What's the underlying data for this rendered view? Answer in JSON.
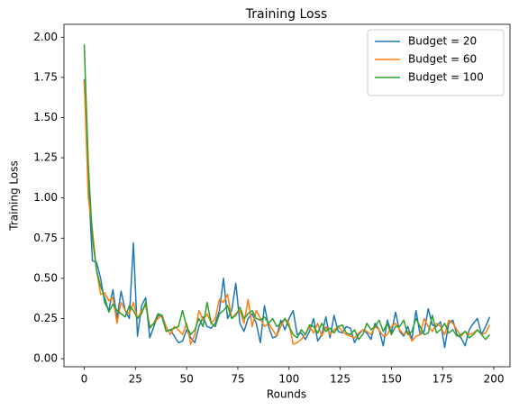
{
  "chart_data": {
    "type": "line",
    "title": "Training Loss",
    "xlabel": "Rounds",
    "ylabel": "Training Loss",
    "x": [
      0,
      2,
      4,
      6,
      8,
      10,
      12,
      14,
      16,
      18,
      20,
      22,
      24,
      26,
      28,
      30,
      32,
      34,
      36,
      38,
      40,
      42,
      44,
      46,
      48,
      50,
      52,
      54,
      56,
      58,
      60,
      62,
      64,
      66,
      68,
      70,
      72,
      74,
      76,
      78,
      80,
      82,
      84,
      86,
      88,
      90,
      92,
      94,
      96,
      98,
      100,
      102,
      104,
      106,
      108,
      110,
      112,
      114,
      116,
      118,
      120,
      122,
      124,
      126,
      128,
      130,
      132,
      134,
      136,
      138,
      140,
      142,
      144,
      146,
      148,
      150,
      152,
      154,
      156,
      158,
      160,
      162,
      164,
      166,
      168,
      170,
      172,
      174,
      176,
      178,
      180,
      182,
      184,
      186,
      188,
      190,
      192,
      194,
      196,
      198
    ],
    "series": [
      {
        "name": "Budget = 20",
        "color": "#1f77b4",
        "values": [
          1.74,
          1.1,
          0.61,
          0.6,
          0.5,
          0.35,
          0.3,
          0.43,
          0.25,
          0.42,
          0.3,
          0.25,
          0.72,
          0.14,
          0.33,
          0.38,
          0.13,
          0.2,
          0.27,
          0.26,
          0.17,
          0.18,
          0.14,
          0.1,
          0.11,
          0.18,
          0.13,
          0.1,
          0.2,
          0.26,
          0.2,
          0.19,
          0.22,
          0.3,
          0.5,
          0.25,
          0.3,
          0.47,
          0.22,
          0.17,
          0.25,
          0.28,
          0.22,
          0.1,
          0.33,
          0.2,
          0.13,
          0.14,
          0.24,
          0.18,
          0.25,
          0.3,
          0.15,
          0.16,
          0.12,
          0.17,
          0.25,
          0.11,
          0.15,
          0.26,
          0.13,
          0.27,
          0.17,
          0.16,
          0.2,
          0.19,
          0.1,
          0.15,
          0.18,
          0.16,
          0.12,
          0.22,
          0.18,
          0.08,
          0.24,
          0.16,
          0.29,
          0.17,
          0.14,
          0.2,
          0.12,
          0.3,
          0.15,
          0.17,
          0.31,
          0.21,
          0.2,
          0.23,
          0.07,
          0.22,
          0.24,
          0.15,
          0.13,
          0.08,
          0.18,
          0.22,
          0.25,
          0.15,
          0.2,
          0.26
        ]
      },
      {
        "name": "Budget = 60",
        "color": "#ff7f0e",
        "values": [
          1.73,
          1.0,
          0.8,
          0.55,
          0.4,
          0.41,
          0.36,
          0.38,
          0.22,
          0.35,
          0.3,
          0.28,
          0.35,
          0.25,
          0.3,
          0.33,
          0.2,
          0.22,
          0.25,
          0.27,
          0.2,
          0.15,
          0.2,
          0.18,
          0.15,
          0.22,
          0.09,
          0.15,
          0.3,
          0.24,
          0.28,
          0.22,
          0.25,
          0.37,
          0.35,
          0.4,
          0.25,
          0.28,
          0.3,
          0.22,
          0.37,
          0.2,
          0.3,
          0.25,
          0.2,
          0.22,
          0.18,
          0.14,
          0.2,
          0.25,
          0.22,
          0.09,
          0.1,
          0.12,
          0.15,
          0.2,
          0.16,
          0.22,
          0.14,
          0.2,
          0.15,
          0.18,
          0.2,
          0.17,
          0.15,
          0.14,
          0.13,
          0.16,
          0.18,
          0.17,
          0.15,
          0.2,
          0.18,
          0.14,
          0.15,
          0.2,
          0.22,
          0.18,
          0.15,
          0.17,
          0.11,
          0.14,
          0.15,
          0.25,
          0.2,
          0.17,
          0.22,
          0.2,
          0.15,
          0.24,
          0.22,
          0.18,
          0.14,
          0.17,
          0.15,
          0.16,
          0.18,
          0.15,
          0.16,
          0.21
        ]
      },
      {
        "name": "Budget = 100",
        "color": "#2ca02c",
        "values": [
          1.955,
          1.2,
          0.75,
          0.55,
          0.45,
          0.38,
          0.29,
          0.34,
          0.3,
          0.28,
          0.26,
          0.33,
          0.3,
          0.25,
          0.28,
          0.35,
          0.19,
          0.22,
          0.28,
          0.27,
          0.17,
          0.18,
          0.19,
          0.2,
          0.3,
          0.2,
          0.15,
          0.18,
          0.25,
          0.2,
          0.35,
          0.22,
          0.2,
          0.28,
          0.3,
          0.33,
          0.25,
          0.27,
          0.32,
          0.25,
          0.28,
          0.3,
          0.25,
          0.24,
          0.26,
          0.22,
          0.25,
          0.2,
          0.22,
          0.25,
          0.2,
          0.15,
          0.13,
          0.18,
          0.15,
          0.21,
          0.2,
          0.16,
          0.22,
          0.17,
          0.19,
          0.16,
          0.2,
          0.21,
          0.16,
          0.15,
          0.18,
          0.12,
          0.15,
          0.22,
          0.18,
          0.2,
          0.24,
          0.17,
          0.22,
          0.15,
          0.2,
          0.2,
          0.24,
          0.15,
          0.17,
          0.25,
          0.2,
          0.15,
          0.16,
          0.27,
          0.16,
          0.18,
          0.22,
          0.16,
          0.18,
          0.14,
          0.15,
          0.17,
          0.13,
          0.15,
          0.18,
          0.15,
          0.12,
          0.15
        ]
      }
    ],
    "xlim": [
      -9.9,
      207.9
    ],
    "xticks": [
      0,
      25,
      50,
      75,
      100,
      125,
      150,
      175,
      200
    ],
    "ylim": [
      -0.05,
      2.08
    ],
    "yticks": [
      {
        "value": 0,
        "label": "0.00"
      },
      0.25,
      {
        "value": 0.5,
        "label": "0.50"
      },
      0.75,
      {
        "value": 1,
        "label": "1.00"
      },
      1.25,
      {
        "value": 1.5,
        "label": "1.50"
      },
      1.75,
      {
        "value": 2,
        "label": "2.00"
      }
    ],
    "legend": "upper right",
    "grid": false
  }
}
